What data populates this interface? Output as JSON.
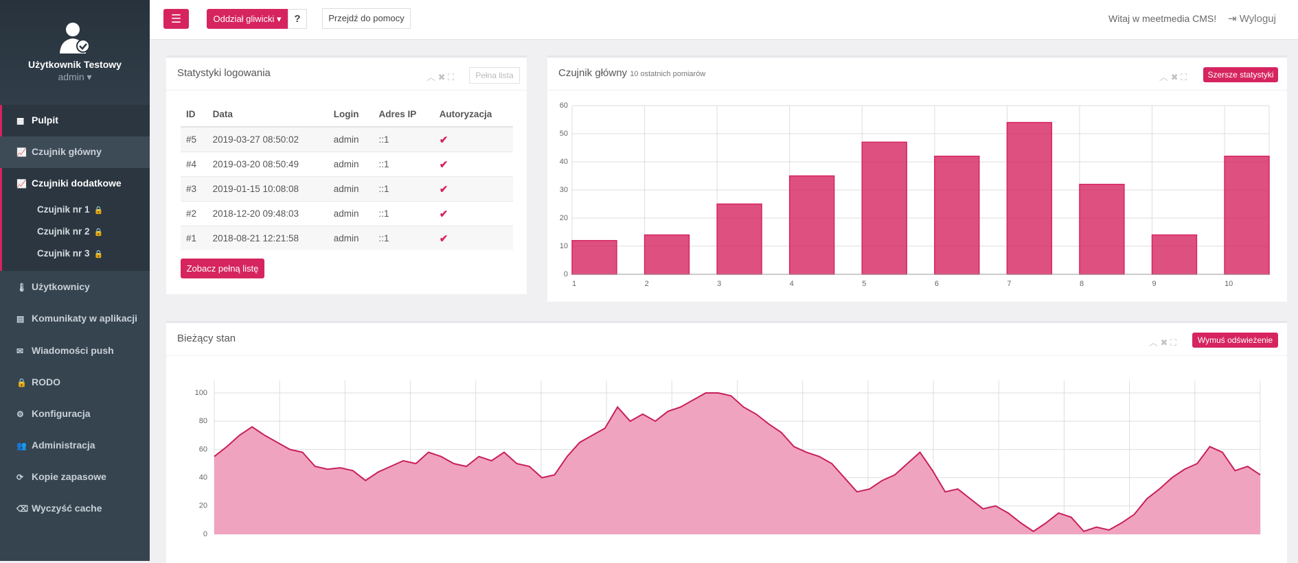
{
  "sidebar": {
    "user_name": "Użytkownik Testowy",
    "user_role": "admin",
    "menu": [
      "Pulpit",
      "Czujnik główny",
      "Czujniki dodatkowe",
      "Czujnik nr 1",
      "Czujnik nr 2",
      "Czujnik nr 3",
      "Użytkownicy",
      "Komunikaty w aplikacji",
      "Wiadomości push",
      "RODO",
      "Konfiguracja",
      "Administracja",
      "Kopie zapasowe",
      "Wyczyść cache"
    ]
  },
  "topbar": {
    "branch": "Oddział gliwicki",
    "help_mark": "?",
    "help": "Przejdź do pomocy",
    "welcome": "Witaj w meetmedia CMS!",
    "logout": "Wyloguj"
  },
  "login_panel": {
    "title": "Statystyki logowania",
    "full_list": "Pełna lista",
    "columns": [
      "ID",
      "Data",
      "Login",
      "Adres IP",
      "Autoryzacja"
    ],
    "rows": [
      [
        "#5",
        "2019-03-27 08:50:02",
        "admin",
        "::1"
      ],
      [
        "#4",
        "2019-03-20 08:50:49",
        "admin",
        "::1"
      ],
      [
        "#3",
        "2019-01-15 10:08:08",
        "admin",
        "::1"
      ],
      [
        "#2",
        "2018-12-20 09:48:03",
        "admin",
        "::1"
      ],
      [
        "#1",
        "2018-08-21 12:21:58",
        "admin",
        "::1"
      ]
    ],
    "button": "Zobacz pełną listę"
  },
  "bar_panel": {
    "title": "Czujnik główny",
    "subtitle": "10 ostatnich pomiarów",
    "button": "Szersze statystyki",
    "chart_data": {
      "type": "bar",
      "categories": [
        "1",
        "2",
        "3",
        "4",
        "5",
        "6",
        "7",
        "8",
        "9",
        "10"
      ],
      "values": [
        12,
        14,
        25,
        35,
        47,
        42,
        54,
        32,
        14,
        42
      ],
      "color": "#d6245f",
      "ylim": [
        0,
        60
      ],
      "yticks": [
        0,
        10,
        20,
        30,
        40,
        50,
        60
      ],
      "grid": true
    }
  },
  "area_panel": {
    "title": "Bieżący stan",
    "button": "Wymuś odświeżenie",
    "chart_data": {
      "type": "area",
      "values": [
        55,
        62,
        70,
        76,
        70,
        65,
        60,
        58,
        48,
        46,
        47,
        45,
        38,
        44,
        48,
        52,
        50,
        58,
        55,
        50,
        48,
        55,
        52,
        58,
        50,
        48,
        40,
        42,
        55,
        65,
        70,
        75,
        90,
        80,
        85,
        80,
        87,
        90,
        95,
        100,
        100,
        98,
        90,
        85,
        78,
        72,
        62,
        58,
        55,
        50,
        40,
        30,
        32,
        38,
        42,
        50,
        58,
        45,
        30,
        32,
        25,
        18,
        20,
        15,
        8,
        2,
        8,
        15,
        12,
        2,
        5,
        3,
        8,
        14,
        25,
        32,
        40,
        46,
        50,
        62,
        58,
        45,
        48,
        42
      ],
      "color": "#c71f5a",
      "ylim": [
        0,
        100
      ],
      "yticks": [
        0,
        20,
        40,
        60,
        80,
        100
      ],
      "grid": true
    }
  }
}
